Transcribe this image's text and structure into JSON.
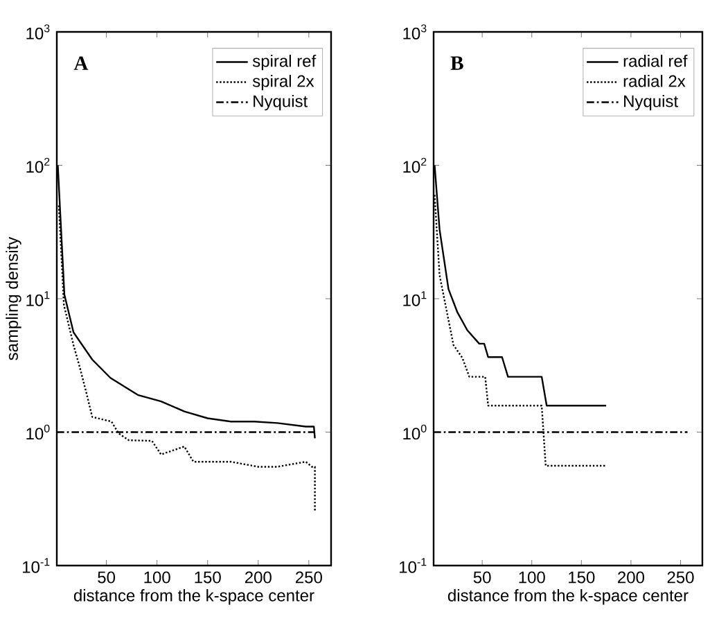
{
  "chart_data": [
    {
      "type": "line",
      "xlabel": "distance from the k-space center",
      "ylabel": "sampling density",
      "annotations": [
        "**A**"
      ],
      "xlim": [
        1,
        272
      ],
      "xticks": [
        50,
        100,
        150,
        200,
        250
      ],
      "ylim": [
        0.1,
        1000
      ],
      "yticks": [
        {
          "value": 0.1,
          "label": "10$^{-1}$"
        },
        {
          "value": 1,
          "label": "10$^{0}$"
        },
        {
          "value": 10,
          "label": "10$^{1}$"
        },
        {
          "value": 100,
          "label": "10$^{2}$"
        },
        {
          "value": 1000,
          "label": "10$^{3}$"
        }
      ],
      "log": "y",
      "legend": "top right",
      "series": [
        {
          "name": "spiral ref",
          "color": "#000000",
          "line_style": "solid",
          "x": [
            2,
            8.5,
            17.5,
            36,
            54,
            81,
            104,
            127,
            150,
            173,
            196,
            219,
            247,
            255,
            256
          ],
          "values": [
            100,
            10.7,
            5.6,
            3.5,
            2.55,
            1.9,
            1.7,
            1.43,
            1.27,
            1.2,
            1.2,
            1.17,
            1.1,
            1.1,
            0.9
          ]
        },
        {
          "name": "spiral 2x",
          "color": "#000000",
          "line_style": "dotted",
          "x": [
            3,
            8,
            17.5,
            24,
            30,
            36,
            55,
            62,
            72,
            95,
            104,
            127,
            136,
            173,
            200,
            219,
            247,
            253,
            256,
            256
          ],
          "values": [
            50,
            9,
            4.5,
            3,
            2,
            1.3,
            1.2,
            0.98,
            0.87,
            0.86,
            0.68,
            0.78,
            0.6,
            0.6,
            0.55,
            0.55,
            0.6,
            0.55,
            0.55,
            0.25
          ]
        },
        {
          "name": "Nyquist",
          "color": "#000000",
          "line_style": "dashdot",
          "x": [
            1,
            256
          ],
          "values": [
            1,
            1
          ]
        }
      ]
    },
    {
      "type": "line",
      "xlabel": "distance from the k-space center",
      "annotations": [
        "**B**"
      ],
      "xlim": [
        1,
        272
      ],
      "xticks": [
        50,
        100,
        150,
        200,
        250
      ],
      "ylim": [
        0.1,
        1000
      ],
      "yticks": [
        {
          "value": 0.1,
          "label": "10$^{-1}$"
        },
        {
          "value": 1,
          "label": "10$^{0}$"
        },
        {
          "value": 10,
          "label": "10$^{1}$"
        },
        {
          "value": 100,
          "label": "10$^{2}$"
        },
        {
          "value": 1000,
          "label": "10$^{3}$"
        }
      ],
      "log": "y",
      "legend": "top right",
      "series": [
        {
          "name": "radial ref",
          "color": "#000000",
          "line_style": "solid",
          "x": [
            2,
            7,
            16,
            25,
            35,
            47,
            52,
            56,
            70,
            76,
            110,
            115,
            175
          ],
          "values": [
            100,
            33,
            11.8,
            7.9,
            5.8,
            4.6,
            4.6,
            3.65,
            3.65,
            2.6,
            2.6,
            1.58,
            1.58
          ]
        },
        {
          "name": "radial 2x",
          "color": "#000000",
          "line_style": "dotted",
          "x": [
            2,
            7,
            21,
            30,
            37,
            53,
            56,
            110,
            114,
            175
          ],
          "values": [
            60,
            15,
            4.5,
            3.6,
            2.6,
            2.6,
            1.58,
            1.58,
            0.56,
            0.56
          ]
        },
        {
          "name": "Nyquist",
          "color": "#000000",
          "line_style": "dashdot",
          "x": [
            1,
            257
          ],
          "values": [
            1,
            1
          ]
        }
      ]
    }
  ]
}
